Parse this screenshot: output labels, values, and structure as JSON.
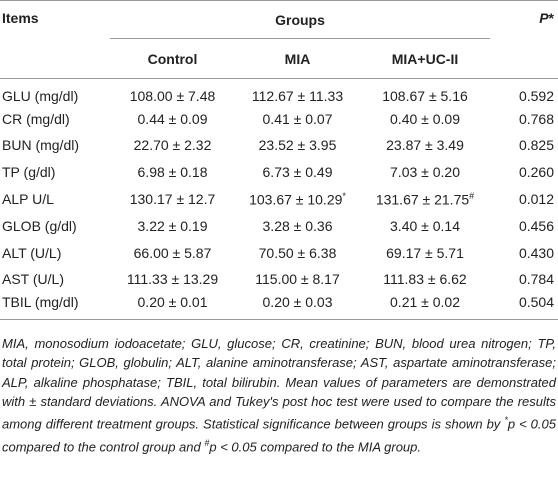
{
  "table": {
    "header": {
      "items": "Items",
      "groups": "Groups",
      "p": {
        "text": "P",
        "mark": "*"
      }
    },
    "subheader": [
      "Control",
      "MIA",
      "MIA+UC-II"
    ],
    "rows": [
      [
        "GLU (mg/dl)",
        "108.00 ± 7.48",
        "112.67 ± 11.33",
        "108.67 ± 5.16",
        "0.592"
      ],
      [
        "CR (mg/dl)",
        "0.44 ± 0.09",
        "0.41 ± 0.07",
        "0.40 ± 0.09",
        "0.768"
      ],
      [
        "BUN (mg/dl)",
        "22.70 ± 2.32",
        "23.52 ± 3.95",
        "23.87 ± 3.49",
        "0.825"
      ],
      [
        "TP (g/dl)",
        "6.98 ± 0.18",
        "6.73 ± 0.49",
        "7.03 ± 0.20",
        "0.260"
      ],
      [
        "ALP U/L",
        "130.17 ± 12.7",
        {
          "text": "103.67 ± 10.29",
          "sup": "*"
        },
        {
          "text": "131.67 ± 21.75",
          "sup": "#"
        },
        "0.012"
      ],
      [
        "GLOB (g/dl)",
        "3.22 ± 0.19",
        "3.28 ± 0.36",
        "3.40 ± 0.14",
        "0.456"
      ],
      [
        "ALT (U/L)",
        "66.00 ± 5.87",
        "70.50 ± 6.38",
        "69.17 ± 5.71",
        "0.430"
      ],
      [
        "AST (U/L)",
        "111.33 ± 13.29",
        "115.00 ± 8.17",
        "111.83 ± 6.62",
        "0.784"
      ],
      [
        "TBIL (mg/dl)",
        "0.20 ± 0.01",
        "0.20 ± 0.03",
        "0.21 ± 0.02",
        "0.504"
      ]
    ]
  },
  "footnote": [
    {
      "text": "MIA, monosodium iodoacetate; GLU, glucose; CR, creatinine; BUN, blood urea nitrogen; TP, total protein; GLOB, globulin; ALT, alanine aminotransferase; AST, aspartate aminotransferase; ALP, alkaline phosphatase; TBIL, total bilirubin. Mean values of parameters are demonstrated with ± standard deviations. ANOVA and Tukey's post hoc test were used to compare the results among different treatment groups. Statistical significance between groups is shown by "
    },
    {
      "sup": "*"
    },
    {
      "text": "p < 0.05 compared to the control group and "
    },
    {
      "sup": "#"
    },
    {
      "text": "p < 0.05 compared to the MIA group."
    }
  ]
}
